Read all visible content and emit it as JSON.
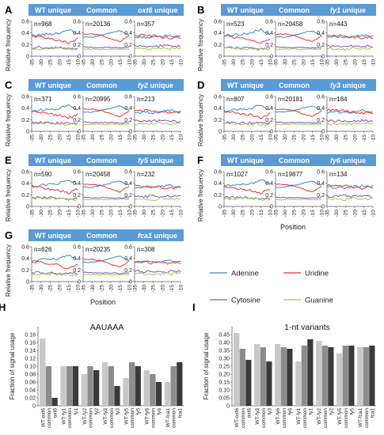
{
  "colors": {
    "header": "#5b9bd5",
    "adenine": "#3a88c8",
    "uridine": "#e8322e",
    "cytosine": "#8a4fb3",
    "guanine": "#9acb5a",
    "bar_light": "#c8c8c8",
    "bar_mid": "#8c8c8c",
    "bar_dark": "#3a3a3a"
  },
  "labels": {
    "y_axis": "Relative frequency",
    "x_axis": "Position"
  },
  "legend": {
    "adenine": "Adenine",
    "uridine": "Uridine",
    "cytosine": "Cytosine",
    "guanine": "Guanine"
  },
  "chart_data": [
    {
      "type": "line",
      "panel_groups": [
        {
          "letter": "A",
          "headers": [
            "WT unique",
            "Common",
            "oxt6 unique"
          ],
          "counts": [
            "n=968",
            "n=20136",
            "n=357"
          ]
        },
        {
          "letter": "B",
          "headers": [
            "WT unique",
            "Common",
            "fy1 unique"
          ],
          "counts": [
            "n=523",
            "n=20458",
            "n=443"
          ]
        },
        {
          "letter": "C",
          "headers": [
            "WT unique",
            "Common",
            "fy2 unique"
          ],
          "counts": [
            "n=371",
            "n=20995",
            "n=213"
          ]
        },
        {
          "letter": "D",
          "headers": [
            "WT unique",
            "Common",
            "fy3 unique"
          ],
          "counts": [
            "n=807",
            "n=20181",
            "n=184"
          ]
        },
        {
          "letter": "E",
          "headers": [
            "WT unique",
            "Common",
            "fy5 unique"
          ],
          "counts": [
            "n=590",
            "n=20458",
            "n=232"
          ]
        },
        {
          "letter": "F",
          "headers": [
            "WT unique",
            "Common",
            "fy6 unique"
          ],
          "counts": [
            "n=1027",
            "n=19877",
            "n=134"
          ]
        },
        {
          "letter": "G",
          "headers": [
            "WT unique",
            "Common",
            "fca1 unique"
          ],
          "counts": [
            "n=626",
            "n=20235",
            "n=308"
          ]
        }
      ],
      "x_ticks": [
        "-35",
        "-30",
        "-25",
        "-20",
        "-15",
        "-10"
      ],
      "y_ticks": [
        "0",
        "0.2",
        "0.4",
        "0.6"
      ],
      "ylim": [
        0,
        0.6
      ],
      "xlim": [
        -35,
        -10
      ],
      "profiles": {
        "x": [
          -35,
          -30,
          -25,
          -20,
          -15,
          -10
        ],
        "unique": {
          "Adenine": [
            0.35,
            0.37,
            0.38,
            0.4,
            0.46,
            0.38
          ],
          "Uridine": [
            0.35,
            0.33,
            0.3,
            0.28,
            0.22,
            0.3
          ],
          "Cytosine": [
            0.15,
            0.15,
            0.15,
            0.14,
            0.14,
            0.14
          ],
          "Guanine": [
            0.13,
            0.13,
            0.13,
            0.13,
            0.12,
            0.12
          ]
        },
        "common": {
          "Adenine": [
            0.33,
            0.33,
            0.36,
            0.4,
            0.44,
            0.36
          ],
          "Uridine": [
            0.38,
            0.38,
            0.36,
            0.3,
            0.25,
            0.35
          ],
          "Cytosine": [
            0.16,
            0.15,
            0.15,
            0.15,
            0.14,
            0.15
          ],
          "Guanine": [
            0.12,
            0.12,
            0.12,
            0.12,
            0.12,
            0.12
          ]
        },
        "mutant": {
          "Adenine": [
            0.32,
            0.33,
            0.32,
            0.34,
            0.36,
            0.32
          ],
          "Uridine": [
            0.36,
            0.36,
            0.35,
            0.33,
            0.31,
            0.35
          ],
          "Cytosine": [
            0.18,
            0.17,
            0.18,
            0.17,
            0.18,
            0.17
          ],
          "Guanine": [
            0.13,
            0.13,
            0.12,
            0.14,
            0.13,
            0.14
          ]
        }
      }
    },
    {
      "type": "bar",
      "letter": "H",
      "title": "AAUAAA",
      "ylabel": "Fraction of signal usage",
      "ylim": [
        0,
        0.2
      ],
      "y_ticks": [
        "0",
        "0.02",
        "0.04",
        "0.06",
        "0.08",
        "0.10",
        "0.12",
        "0.14",
        "0.16",
        "0.18"
      ],
      "categories": [
        "WT-oxt6",
        "common",
        "oxt6",
        "WT-fy1",
        "common",
        "fy1",
        "WT-fy2",
        "common",
        "fy2",
        "WT-fy3",
        "common",
        "fy3",
        "WT-fy5",
        "common",
        "fy5",
        "WT-fy6",
        "common",
        "fy6",
        "WT-fca1",
        "common",
        "fca1"
      ],
      "values": [
        0.17,
        0.1,
        0.02,
        0.1,
        0.1,
        0.1,
        0.08,
        0.1,
        0.09,
        0.11,
        0.1,
        0.05,
        0.07,
        0.11,
        0.1,
        0.09,
        0.08,
        0.06,
        0.06,
        0.1,
        0.11
      ],
      "shades": [
        "light",
        "mid",
        "dark",
        "light",
        "mid",
        "dark",
        "light",
        "mid",
        "dark",
        "light",
        "mid",
        "dark",
        "light",
        "mid",
        "dark",
        "light",
        "mid",
        "dark",
        "light",
        "mid",
        "dark"
      ]
    },
    {
      "type": "bar",
      "letter": "I",
      "title": "1-nt variants",
      "ylabel": "Fraction of signal usage",
      "ylim": [
        0,
        0.5
      ],
      "y_ticks": [
        "0",
        "0.05",
        "0.10",
        "0.15",
        "0.20",
        "0.25",
        "0.30",
        "0.35",
        "0.40",
        "0.45"
      ],
      "categories": [
        "WT-oxt6",
        "common",
        "oxt6",
        "WT-fy3",
        "common",
        "fy3",
        "WT-fy6",
        "common",
        "fy6",
        "WT-fy1",
        "common",
        "fy1",
        "WT-fy2",
        "common",
        "fy2",
        "WT-fy5",
        "common",
        "fy5",
        "WT-fca1",
        "common",
        "fca1"
      ],
      "values": [
        0.46,
        0.36,
        0.29,
        0.39,
        0.37,
        0.28,
        0.39,
        0.37,
        0.36,
        0.28,
        0.38,
        0.42,
        0.41,
        0.38,
        0.37,
        0.33,
        0.38,
        0.38,
        0.37,
        0.37,
        0.38
      ],
      "shades": [
        "light",
        "mid",
        "dark",
        "light",
        "mid",
        "dark",
        "light",
        "mid",
        "dark",
        "light",
        "mid",
        "dark",
        "light",
        "mid",
        "dark",
        "light",
        "mid",
        "dark",
        "light",
        "mid",
        "dark"
      ]
    }
  ]
}
